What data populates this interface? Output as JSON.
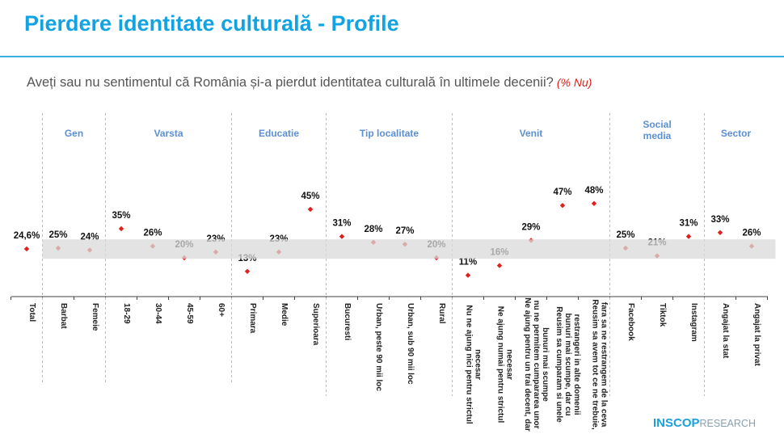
{
  "title": "Pierdere identitate culturală - Profile",
  "question": "Aveți sau nu sentimentul că România și-a pierdut identitatea culturală în ultimele decenii?",
  "question_note": "(% Nu)",
  "logo": {
    "main": "INSCOP",
    "sub": "RESEARCH"
  },
  "colors": {
    "title": "#12a3e3",
    "point": "#e0201b",
    "group_label": "#5b8fd6",
    "band": "#d9d9d9"
  },
  "chart_data": {
    "type": "scatter",
    "ylim": [
      0,
      50
    ],
    "grid": false,
    "highlight_band": [
      19.5,
      29.5
    ],
    "groups": [
      {
        "label": "",
        "categories": [
          "Total"
        ],
        "values": [
          24.6
        ],
        "value_labels": [
          "24,6%"
        ]
      },
      {
        "label": "Gen",
        "categories": [
          "Barbat",
          "Femeie"
        ],
        "values": [
          25,
          24
        ],
        "value_labels": [
          "25%",
          "24%"
        ]
      },
      {
        "label": "Varsta",
        "categories": [
          "18-29",
          "30-44",
          "45-59",
          "60+"
        ],
        "values": [
          35,
          26,
          20,
          23
        ],
        "value_labels": [
          "35%",
          "26%",
          "20%",
          "23%"
        ]
      },
      {
        "label": "Educatie",
        "categories": [
          "Primara",
          "Medie",
          "Superioara"
        ],
        "values": [
          13,
          23,
          45
        ],
        "value_labels": [
          "13%",
          "23%",
          "45%"
        ]
      },
      {
        "label": "Tip localitate",
        "categories": [
          "Bucuresti",
          "Urban, peste 90 mii loc",
          "Urban, sub 90 mii loc",
          "Rural"
        ],
        "values": [
          31,
          28,
          27,
          20
        ],
        "value_labels": [
          "31%",
          "28%",
          "27%",
          "20%"
        ]
      },
      {
        "label": "Venit",
        "categories": [
          "Nu ne ajung nici pentru strictul|necesar",
          "Ne ajung numai pentru strictul|necesar",
          "Ne ajung pentru un trai decent, dar|nu ne permitem cumpararea unor|bunuri mai scumpe",
          "Reusim sa cumparam si unele|bunuri mai scumpe, dar cu|restrangeri in alte domenii",
          "Reusim sa avem tot ce ne trebuie,|fara sa ne restrangem de la ceva"
        ],
        "values": [
          11,
          16,
          29,
          47,
          48
        ],
        "value_labels": [
          "11%",
          "16%",
          "29%",
          "47%",
          "48%"
        ]
      },
      {
        "label": "Social|media",
        "categories": [
          "Facebook",
          "Tiktok",
          "Instagram"
        ],
        "values": [
          25,
          21,
          31
        ],
        "value_labels": [
          "25%",
          "21%",
          "31%"
        ]
      },
      {
        "label": "Sector",
        "categories": [
          "Angajat la stat",
          "Angajat la privat"
        ],
        "values": [
          33,
          26
        ],
        "value_labels": [
          "33%",
          "26%"
        ]
      }
    ]
  }
}
